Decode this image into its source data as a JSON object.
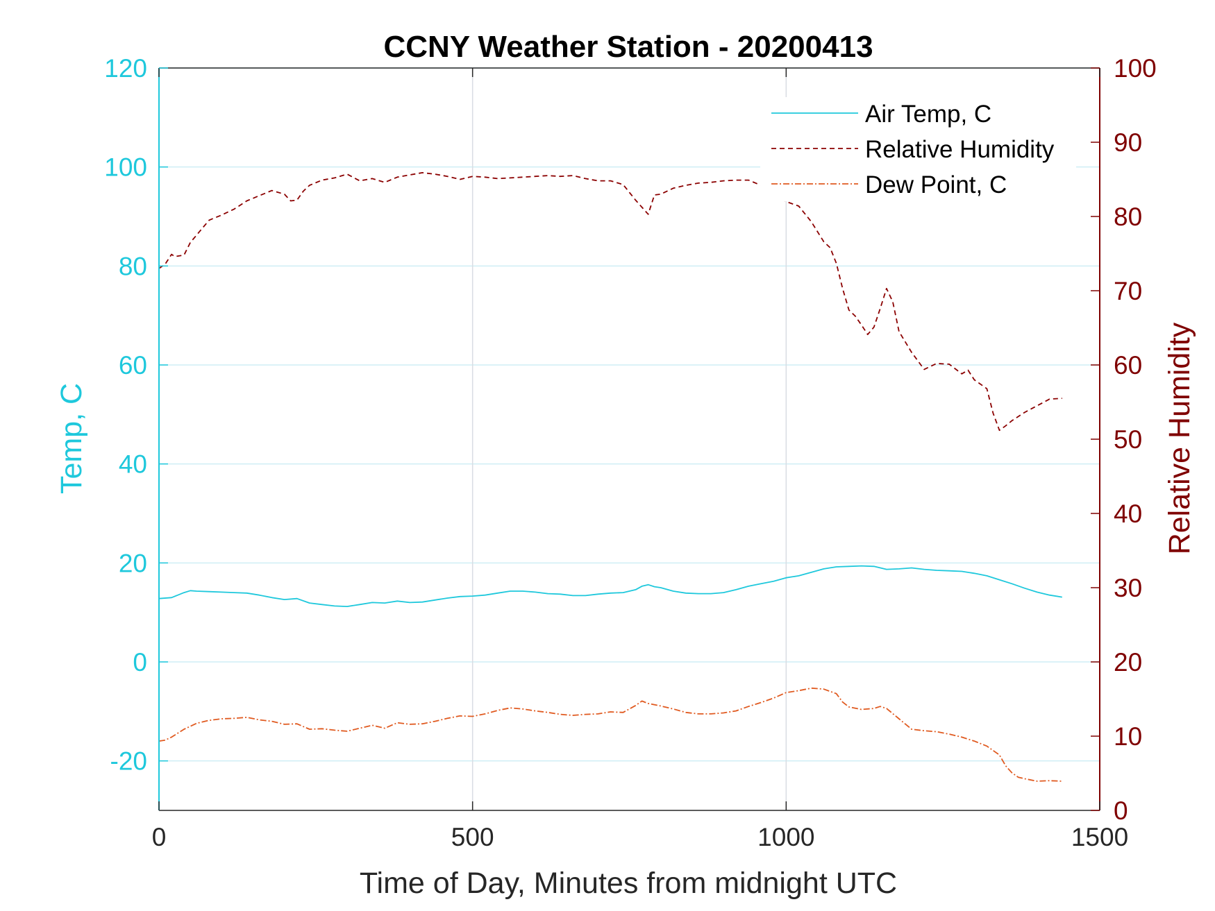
{
  "chart_data": {
    "type": "line",
    "title": "CCNY Weather Station - 20200413",
    "xlabel": "Time of Day, Minutes from midnight UTC",
    "ylabel_left": "Temp, C",
    "ylabel_right": "Relative Humidity",
    "xlim": [
      0,
      1500
    ],
    "ylim_left": [
      -30,
      120
    ],
    "ylim_right": [
      0,
      100
    ],
    "x_ticks": [
      0,
      500,
      1000,
      1500
    ],
    "y_ticks_left": [
      -20,
      0,
      20,
      40,
      60,
      80,
      100,
      120
    ],
    "y_ticks_right": [
      0,
      10,
      20,
      30,
      40,
      50,
      60,
      70,
      80,
      90,
      100
    ],
    "grid": true,
    "legend_position": "top-right",
    "colors": {
      "left_axis": "#1ec8dc",
      "right_axis": "#7f0000",
      "air_temp": "#1ec8dc",
      "humidity": "#8b0000",
      "dew_point": "#e05a20",
      "grid": "#cfeef5",
      "grid_vertical": "#d9dde3",
      "frame": "#262626"
    },
    "series": [
      {
        "name": "Air Temp, C",
        "axis": "left",
        "style": "solid",
        "x": [
          0,
          20,
          40,
          50,
          60,
          80,
          100,
          120,
          140,
          160,
          180,
          200,
          220,
          240,
          260,
          280,
          300,
          320,
          340,
          360,
          380,
          400,
          420,
          440,
          460,
          480,
          500,
          520,
          540,
          560,
          580,
          600,
          620,
          640,
          660,
          680,
          700,
          720,
          740,
          760,
          770,
          780,
          790,
          800,
          820,
          840,
          860,
          880,
          900,
          920,
          940,
          960,
          980,
          1000,
          1020,
          1040,
          1060,
          1080,
          1100,
          1120,
          1140,
          1160,
          1180,
          1200,
          1220,
          1240,
          1260,
          1280,
          1300,
          1320,
          1340,
          1360,
          1380,
          1400,
          1420,
          1440
        ],
        "values": [
          12.8,
          13.0,
          14.0,
          14.4,
          14.3,
          14.2,
          14.1,
          14.0,
          13.9,
          13.5,
          13.0,
          12.6,
          12.8,
          11.9,
          11.6,
          11.3,
          11.2,
          11.6,
          12.0,
          11.9,
          12.3,
          12.0,
          12.1,
          12.5,
          12.9,
          13.2,
          13.3,
          13.5,
          13.9,
          14.3,
          14.3,
          14.1,
          13.8,
          13.7,
          13.4,
          13.4,
          13.7,
          13.9,
          14.0,
          14.6,
          15.3,
          15.6,
          15.2,
          15.0,
          14.3,
          13.9,
          13.8,
          13.8,
          14.0,
          14.6,
          15.3,
          15.8,
          16.3,
          17.0,
          17.4,
          18.1,
          18.8,
          19.2,
          19.3,
          19.4,
          19.3,
          18.7,
          18.8,
          19.0,
          18.7,
          18.5,
          18.4,
          18.3,
          17.9,
          17.4,
          16.6,
          15.8,
          14.9,
          14.1,
          13.5,
          13.1
        ]
      },
      {
        "name": "Relative Humidity",
        "axis": "right",
        "style": "dashed",
        "x": [
          0,
          10,
          20,
          25,
          40,
          50,
          60,
          70,
          80,
          100,
          120,
          140,
          160,
          180,
          200,
          210,
          220,
          230,
          240,
          260,
          280,
          300,
          320,
          340,
          360,
          380,
          400,
          420,
          440,
          460,
          480,
          500,
          520,
          540,
          560,
          580,
          600,
          620,
          640,
          660,
          680,
          700,
          720,
          740,
          760,
          780,
          790,
          800,
          820,
          840,
          860,
          880,
          900,
          920,
          940,
          960,
          980,
          1000,
          1020,
          1040,
          1060,
          1070,
          1080,
          1090,
          1100,
          1110,
          1120,
          1130,
          1140,
          1150,
          1160,
          1170,
          1180,
          1200,
          1220,
          1240,
          1260,
          1280,
          1290,
          1300,
          1310,
          1320,
          1330,
          1340,
          1350,
          1360,
          1380,
          1400,
          1420,
          1440
        ],
        "values": [
          73.0,
          73.6,
          74.9,
          74.6,
          74.8,
          76.5,
          77.5,
          78.5,
          79.5,
          80.2,
          81.0,
          82.1,
          82.8,
          83.5,
          83.0,
          82.1,
          82.2,
          83.4,
          84.2,
          84.9,
          85.2,
          85.7,
          84.8,
          85.1,
          84.6,
          85.3,
          85.6,
          85.9,
          85.7,
          85.4,
          85.0,
          85.4,
          85.3,
          85.1,
          85.2,
          85.3,
          85.4,
          85.5,
          85.4,
          85.5,
          85.1,
          84.8,
          84.8,
          84.3,
          82.2,
          80.3,
          82.9,
          83.0,
          83.8,
          84.2,
          84.5,
          84.6,
          84.8,
          84.9,
          84.9,
          84.2,
          83.4,
          82.0,
          81.4,
          79.3,
          76.6,
          75.8,
          73.7,
          70.3,
          67.4,
          66.6,
          65.4,
          64.1,
          65.1,
          67.6,
          70.3,
          68.5,
          64.5,
          61.7,
          59.4,
          60.2,
          60.1,
          58.8,
          59.3,
          58.0,
          57.4,
          56.8,
          53.5,
          51.2,
          51.8,
          52.5,
          53.6,
          54.5,
          55.4,
          55.5
        ]
      },
      {
        "name": "Dew Point, C",
        "axis": "left",
        "style": "dashdot",
        "x": [
          0,
          10,
          20,
          40,
          60,
          80,
          100,
          120,
          140,
          160,
          180,
          200,
          220,
          240,
          260,
          280,
          300,
          320,
          340,
          360,
          380,
          400,
          420,
          440,
          460,
          480,
          500,
          520,
          540,
          560,
          580,
          600,
          620,
          640,
          660,
          680,
          700,
          720,
          740,
          760,
          770,
          780,
          800,
          820,
          840,
          860,
          880,
          900,
          920,
          940,
          960,
          980,
          1000,
          1020,
          1040,
          1060,
          1080,
          1090,
          1100,
          1120,
          1140,
          1150,
          1160,
          1180,
          1200,
          1220,
          1240,
          1260,
          1280,
          1300,
          1320,
          1340,
          1350,
          1360,
          1370,
          1380,
          1400,
          1420,
          1440
        ],
        "values": [
          -16.0,
          -15.8,
          -15.2,
          -13.6,
          -12.4,
          -11.8,
          -11.5,
          -11.4,
          -11.2,
          -11.7,
          -12.0,
          -12.6,
          -12.5,
          -13.6,
          -13.5,
          -13.8,
          -14.0,
          -13.4,
          -12.8,
          -13.4,
          -12.3,
          -12.6,
          -12.5,
          -12.0,
          -11.4,
          -10.9,
          -11.0,
          -10.5,
          -9.8,
          -9.3,
          -9.5,
          -9.9,
          -10.2,
          -10.6,
          -10.8,
          -10.6,
          -10.5,
          -10.1,
          -10.2,
          -8.8,
          -7.9,
          -8.4,
          -8.9,
          -9.5,
          -10.2,
          -10.5,
          -10.5,
          -10.3,
          -9.9,
          -9.0,
          -8.2,
          -7.3,
          -6.2,
          -5.8,
          -5.3,
          -5.5,
          -6.4,
          -8.1,
          -9.1,
          -9.6,
          -9.4,
          -9.0,
          -9.4,
          -11.5,
          -13.6,
          -13.9,
          -14.1,
          -14.6,
          -15.2,
          -16.0,
          -17.0,
          -18.8,
          -21.0,
          -22.4,
          -23.3,
          -23.6,
          -24.1,
          -24.0,
          -24.1
        ]
      }
    ]
  }
}
